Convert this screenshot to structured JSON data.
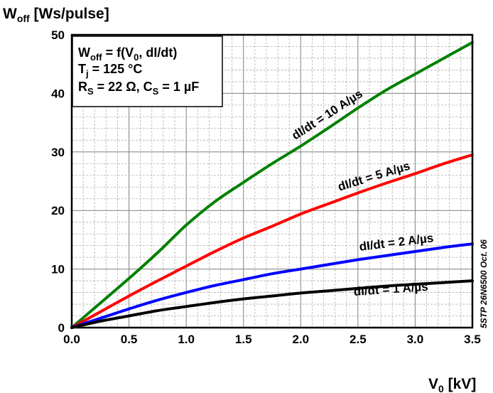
{
  "chart_data": {
    "type": "line",
    "ylabel_main": "W",
    "ylabel_sub": "off",
    "ylabel_unit": " [Ws/pulse]",
    "xlabel_main": "V",
    "xlabel_sub": "0",
    "xlabel_unit": " [kV]",
    "xlim": [
      0,
      3.5
    ],
    "ylim": [
      0,
      50
    ],
    "xticks": [
      "0.0",
      "0.5",
      "1.0",
      "1.5",
      "2.0",
      "2.5",
      "3.0",
      "3.5"
    ],
    "yticks": [
      "0",
      "10",
      "20",
      "30",
      "40",
      "50"
    ],
    "grid": true,
    "series": [
      {
        "name": "dI/dt = 10 A/µs",
        "color": "#008000",
        "x": [
          0,
          0.25,
          0.5,
          0.75,
          1.0,
          1.25,
          1.5,
          1.75,
          2.0,
          2.25,
          2.5,
          2.75,
          3.0,
          3.25,
          3.5
        ],
        "y": [
          0,
          4.2,
          8.4,
          12.8,
          17.5,
          21.5,
          24.8,
          28.0,
          31.0,
          34.2,
          37.5,
          40.6,
          43.3,
          46.0,
          48.7
        ]
      },
      {
        "name": "dI/dt = 5 A/µs",
        "color": "#ff0000",
        "x": [
          0,
          0.25,
          0.5,
          0.75,
          1.0,
          1.25,
          1.5,
          1.75,
          2.0,
          2.25,
          2.5,
          2.75,
          3.0,
          3.25,
          3.5
        ],
        "y": [
          0,
          2.7,
          5.4,
          8.0,
          10.5,
          13.0,
          15.3,
          17.3,
          19.4,
          21.2,
          23.0,
          24.7,
          26.3,
          28.0,
          29.5
        ]
      },
      {
        "name": "dI/dt = 2 A/µs",
        "color": "#0000ff",
        "x": [
          0,
          0.25,
          0.5,
          0.75,
          1.0,
          1.25,
          1.5,
          1.75,
          2.0,
          2.25,
          2.5,
          2.75,
          3.0,
          3.25,
          3.5
        ],
        "y": [
          0,
          1.6,
          3.2,
          4.7,
          6.0,
          7.2,
          8.2,
          9.2,
          10.0,
          10.8,
          11.6,
          12.3,
          13.0,
          13.7,
          14.3
        ]
      },
      {
        "name": "dI/dt = 1 A/µs",
        "color": "#000000",
        "x": [
          0,
          0.25,
          0.5,
          0.75,
          1.0,
          1.25,
          1.5,
          1.75,
          2.0,
          2.25,
          2.5,
          2.75,
          3.0,
          3.25,
          3.5
        ],
        "y": [
          0,
          1.1,
          2.0,
          2.9,
          3.6,
          4.3,
          4.9,
          5.4,
          5.9,
          6.3,
          6.7,
          7.1,
          7.4,
          7.7,
          8.0
        ]
      }
    ],
    "curve_labels": [
      {
        "text": "dI/dt = 10 A/µs",
        "x": 2.25,
        "y": 35.8,
        "angle": -33
      },
      {
        "text": "dI/dt = 5 A/µs",
        "x": 2.65,
        "y": 25.2,
        "angle": -17
      },
      {
        "text": "dI/dt = 2 A/µs",
        "x": 2.84,
        "y": 13.9,
        "angle": -7
      },
      {
        "text": "dI/dt = 1 A/µs",
        "x": 2.79,
        "y": 5.9,
        "angle": -4
      }
    ],
    "legend_box": {
      "line1_main": "W",
      "line1_sub": "off",
      "line1_rest": " = f(V",
      "line1_sub2": "0",
      "line1_end": ", dI/dt)",
      "line2_main": "T",
      "line2_sub": "j",
      "line2_rest": " = 125 °C",
      "line3_main": "R",
      "line3_sub": "S",
      "line3_rest": " = 22 Ω, C",
      "line3_sub2": "S",
      "line3_end": " = 1 µF",
      "placement": "top-left"
    },
    "watermark": "5STP 26N6500 Oct. 06"
  }
}
